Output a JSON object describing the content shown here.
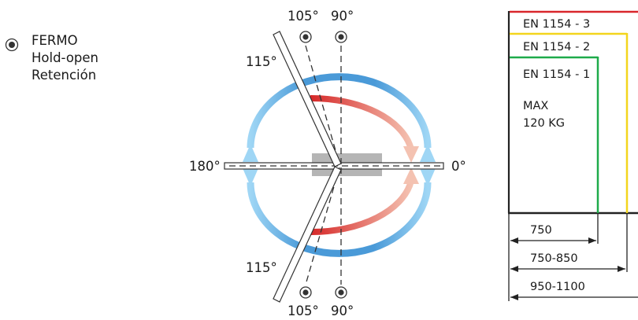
{
  "legend": {
    "icon": "hold-open-point-icon",
    "lines": [
      "FERMO",
      "Hold-open",
      "Retención"
    ]
  },
  "diagram": {
    "angle_labels": {
      "top_105": "105°",
      "top_90": "90°",
      "top_115": "115°",
      "left_180": "180°",
      "right_0": "0°",
      "bottom_115": "115°",
      "bottom_105": "105°",
      "bottom_90": "90°"
    },
    "colors": {
      "outer_arrow_blue": "#4a9ad8",
      "outer_arrow_light_blue": "#9fd6f5",
      "inner_arrow_red": "#d62828",
      "inner_arrow_pink": "#f2b7a4",
      "motor_grey": "#b5b5b5"
    }
  },
  "classes": {
    "labels": [
      "EN 1154 - 3",
      "EN 1154 - 2",
      "EN 1154 - 1"
    ],
    "max_weight": [
      "MAX",
      "120 KG"
    ],
    "widths": [
      "750",
      "750-850",
      "950-1100"
    ],
    "colors": {
      "en3": "#d9262b",
      "en2": "#f3d51d",
      "en1": "#1eab4a"
    }
  }
}
